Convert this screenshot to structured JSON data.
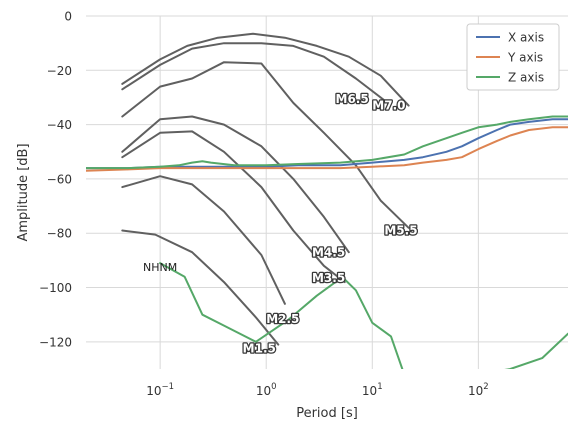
{
  "chart_data": {
    "type": "line",
    "title": "",
    "xlabel": "Period [s]",
    "ylabel": "Amplitude [dB]",
    "x_scale": "log",
    "xlim": [
      0.02,
      700
    ],
    "ylim": [
      -130,
      0
    ],
    "x_ticks": [
      {
        "value": 0.1,
        "base": "10",
        "exp": "−1"
      },
      {
        "value": 1,
        "base": "10",
        "exp": "0"
      },
      {
        "value": 10,
        "base": "10",
        "exp": "1"
      },
      {
        "value": 100,
        "base": "10",
        "exp": "2"
      }
    ],
    "y_ticks": [
      0,
      -20,
      -40,
      -60,
      -80,
      -100,
      -120
    ],
    "y_tick_labels": [
      "0",
      "−20",
      "−40",
      "−60",
      "−80",
      "−100",
      "−120"
    ],
    "grid": true,
    "legend_position": "top-right",
    "series": [
      {
        "name": "X axis",
        "color": "#4c72b0",
        "x": [
          0.02,
          0.05,
          0.1,
          0.2,
          0.5,
          1,
          2,
          5,
          10,
          20,
          30,
          50,
          70,
          100,
          150,
          200,
          300,
          500,
          700
        ],
        "y": [
          -56,
          -56,
          -55.5,
          -55.5,
          -55.5,
          -55.5,
          -55,
          -55,
          -54,
          -53,
          -52,
          -50,
          -48,
          -45,
          -42,
          -40,
          -39,
          -38,
          -38
        ]
      },
      {
        "name": "Y axis",
        "color": "#dd8452",
        "x": [
          0.02,
          0.05,
          0.1,
          0.2,
          0.5,
          1,
          2,
          5,
          10,
          20,
          30,
          50,
          70,
          100,
          150,
          200,
          300,
          500,
          700
        ],
        "y": [
          -57,
          -56.5,
          -56,
          -56,
          -56,
          -56,
          -56,
          -56,
          -55.5,
          -55,
          -54,
          -53,
          -52,
          -49,
          -46,
          -44,
          -42,
          -41,
          -41
        ]
      },
      {
        "name": "Z axis",
        "color": "#55a868",
        "x": [
          0.02,
          0.05,
          0.1,
          0.15,
          0.2,
          0.25,
          0.3,
          0.5,
          1,
          2,
          5,
          10,
          20,
          30,
          50,
          70,
          100,
          150,
          200,
          300,
          500,
          700
        ],
        "y": [
          -56,
          -56,
          -55.5,
          -55,
          -54,
          -53.5,
          -54,
          -55,
          -55,
          -54.5,
          -54,
          -53,
          -51,
          -48,
          -45,
          -43,
          -41,
          -40,
          -39,
          -38,
          -37,
          -37
        ]
      }
    ],
    "model_curves": [
      {
        "label": "M7.0",
        "x": [
          0.044,
          0.1,
          0.18,
          0.35,
          0.75,
          1.5,
          3,
          6,
          12,
          22
        ],
        "y": [
          -25,
          -16,
          -11,
          -8,
          -6.5,
          -8,
          -11,
          -15,
          -22,
          -33
        ]
      },
      {
        "label": "M6.5",
        "x": [
          0.044,
          0.1,
          0.2,
          0.4,
          0.9,
          1.8,
          3.5,
          7,
          14
        ],
        "y": [
          -27,
          -18,
          -12,
          -10,
          -10,
          -11,
          -15,
          -23,
          -32
        ]
      },
      {
        "label": "M5.5",
        "x": [
          0.044,
          0.1,
          0.2,
          0.4,
          0.9,
          1.8,
          3.5,
          7,
          12,
          22
        ],
        "y": [
          -37,
          -26,
          -23,
          -17,
          -17.5,
          -32,
          -43,
          -55,
          -68,
          -78
        ]
      },
      {
        "label": "M4.5",
        "x": [
          0.044,
          0.1,
          0.2,
          0.4,
          0.9,
          1.8,
          3.5,
          6
        ],
        "y": [
          -50,
          -38,
          -37,
          -40,
          -48,
          -60,
          -74,
          -87
        ]
      },
      {
        "label": "M3.5",
        "x": [
          0.044,
          0.1,
          0.2,
          0.4,
          0.9,
          1.8,
          3.5,
          5.5
        ],
        "y": [
          -52,
          -43,
          -42.5,
          -50,
          -63,
          -79,
          -92,
          -98
        ]
      },
      {
        "label": "M2.5",
        "x": [
          0.044,
          0.1,
          0.2,
          0.4,
          0.9,
          1.5
        ],
        "y": [
          -63,
          -59,
          -62,
          -72,
          -88,
          -106
        ]
      },
      {
        "label": "M1.5",
        "x": [
          0.044,
          0.09,
          0.2,
          0.4,
          0.8,
          1.3
        ],
        "y": [
          -79,
          -80.5,
          -87,
          -98,
          -111,
          -121
        ]
      },
      {
        "label": "NHNM",
        "color": "#55a868",
        "x": [
          0.1,
          0.17,
          0.25,
          0.4,
          0.8,
          1.6,
          3,
          4.5,
          5.5,
          7,
          10,
          15,
          20,
          50,
          100,
          200,
          400,
          700
        ],
        "y": [
          -91,
          -96,
          -110,
          -114,
          -120,
          -112,
          -103,
          -98,
          -97,
          -101,
          -113,
          -118,
          -132,
          -150,
          -132,
          -130,
          -126,
          -117
        ]
      }
    ],
    "annotations": [
      {
        "text": "NHNM",
        "x": 0.1,
        "y": -94,
        "style": "plain"
      },
      {
        "text": "M6.5",
        "x": 4.5,
        "y": -32,
        "style": "outlined"
      },
      {
        "text": "M7.0",
        "x": 10,
        "y": -34.5,
        "style": "outlined"
      },
      {
        "text": "M5.5",
        "x": 13,
        "y": -80.5,
        "style": "outlined"
      },
      {
        "text": "M4.5",
        "x": 2.7,
        "y": -88.5,
        "style": "outlined"
      },
      {
        "text": "M3.5",
        "x": 2.7,
        "y": -98,
        "style": "outlined"
      },
      {
        "text": "M2.5",
        "x": 1.0,
        "y": -113,
        "style": "outlined"
      },
      {
        "text": "M1.5",
        "x": 0.6,
        "y": -124,
        "style": "outlined"
      }
    ],
    "model_color": "#606060",
    "line_color": "#606060"
  }
}
